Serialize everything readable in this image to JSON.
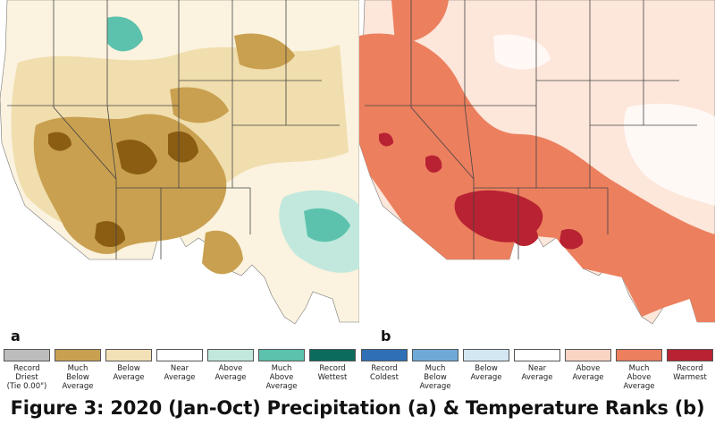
{
  "panels": [
    {
      "letter": "a",
      "topic": "precipitation"
    },
    {
      "letter": "b",
      "topic": "temperature"
    }
  ],
  "precipitation_legend": [
    {
      "label": "Record\nDriest\n(Tie 0.00\")",
      "color": "#bdbdbd"
    },
    {
      "label": "Much\nBelow\nAverage",
      "color": "#c9a050"
    },
    {
      "label": "Below\nAverage",
      "color": "#f2e1b6"
    },
    {
      "label": "Near\nAverage",
      "color": "#ffffff"
    },
    {
      "label": "Above\nAverage",
      "color": "#c2e8dd"
    },
    {
      "label": "Much\nAbove\nAverage",
      "color": "#5cc2ad"
    },
    {
      "label": "Record\nWettest",
      "color": "#0b6b5c"
    }
  ],
  "temperature_legend": [
    {
      "label": "Record\nColdest",
      "color": "#2f6fb5"
    },
    {
      "label": "Much\nBelow\nAverage",
      "color": "#6fa9d8"
    },
    {
      "label": "Below\nAverage",
      "color": "#d3e7f3"
    },
    {
      "label": "Near\nAverage",
      "color": "#ffffff"
    },
    {
      "label": "Above\nAverage",
      "color": "#f9d4c4"
    },
    {
      "label": "Much\nAbove\nAverage",
      "color": "#ec7f5e"
    },
    {
      "label": "Record\nWarmest",
      "color": "#b82232"
    }
  ],
  "caption": "Figure 3: 2020 (Jan-Oct) Precipitation (a) & Temperature Ranks (b)"
}
